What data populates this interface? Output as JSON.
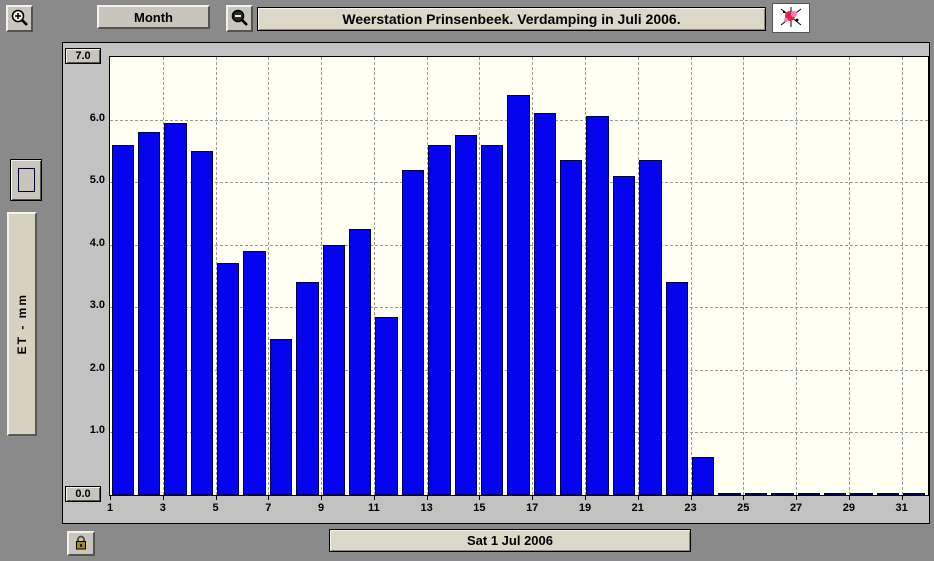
{
  "toolbar": {
    "month_button": "Month",
    "title": "Weerstation Prinsenbeek. Verdamping in Juli 2006."
  },
  "y_axis": {
    "label": "ET - mm",
    "max_label": "7.0",
    "min_label": "0.0"
  },
  "statusbar": {
    "date": "Sat 1 Jul 2006"
  },
  "colors": {
    "bar": "#0404ee",
    "plot_background": "#fffff2",
    "window_background": "#8a8a8a"
  },
  "chart_data": {
    "type": "bar",
    "title": "Weerstation Prinsenbeek. Verdamping in Juli 2006.",
    "xlabel": "",
    "ylabel": "ET - mm",
    "x": [
      1,
      2,
      3,
      4,
      5,
      6,
      7,
      8,
      9,
      10,
      11,
      12,
      13,
      14,
      15,
      16,
      17,
      18,
      19,
      20,
      21,
      22,
      23,
      24,
      25,
      26,
      27,
      28,
      29,
      30,
      31
    ],
    "values": [
      5.6,
      5.8,
      5.95,
      5.5,
      3.7,
      3.9,
      2.5,
      3.4,
      4.0,
      4.25,
      2.85,
      5.2,
      5.6,
      5.75,
      5.6,
      6.4,
      6.1,
      5.35,
      6.05,
      5.1,
      5.35,
      3.4,
      0.6,
      0,
      0,
      0,
      0,
      0,
      0,
      0,
      0
    ],
    "ylim": [
      0.0,
      7.0
    ],
    "ytick_labels": [
      "0.0",
      "1.0",
      "2.0",
      "3.0",
      "4.0",
      "5.0",
      "6.0",
      "7.0"
    ],
    "xticks": [
      1,
      3,
      5,
      7,
      9,
      11,
      13,
      15,
      17,
      19,
      21,
      23,
      25,
      27,
      29,
      31
    ],
    "grid": "dashed",
    "legend_position": "left",
    "bar_color": "#0404ee",
    "plot_bg": "#fffff2"
  }
}
